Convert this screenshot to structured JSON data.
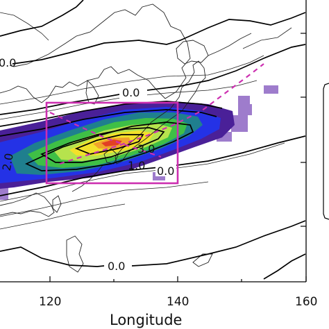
{
  "axis": {
    "xlabel": "Longitude",
    "xticks": [
      "120",
      "140",
      "160"
    ]
  },
  "contour_labels": [
    "0.0",
    "0.0",
    "0.0",
    "1.0",
    "2.0",
    "3.0",
    "0.0"
  ],
  "colors": {
    "box": "#cc2fb0",
    "ridge": "#cc2fb0",
    "lightpurple": "#9e7ccc",
    "purple": "#4a2098",
    "blue": "#2432e6",
    "teal": "#1f7f8e",
    "green": "#3fbf46",
    "lightgreen": "#b6e34d",
    "yellow": "#f2e12a",
    "orange": "#f0a22c",
    "red": "#e24024",
    "line": "#000000"
  }
}
